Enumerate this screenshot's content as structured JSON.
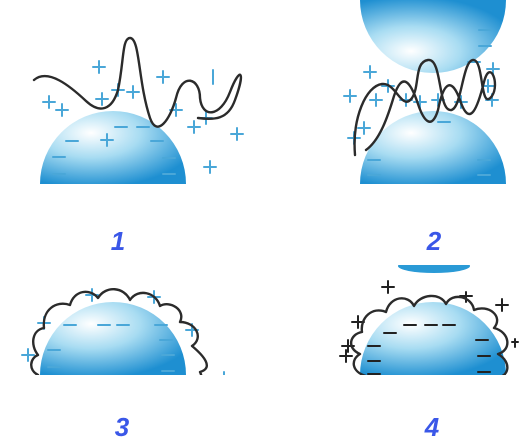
{
  "colors": {
    "label": "#3a57e8",
    "sphere_light": "#ffffff",
    "sphere_mid": "#9ad4ef",
    "sphere_dark": "#1e8fd1",
    "sign": "#4aa7d8",
    "sign_dark": "#222222",
    "polymer": "#2b2b2b"
  },
  "panels": [
    {
      "label": "1"
    },
    {
      "label": "2"
    },
    {
      "label": "3"
    },
    {
      "label": "4"
    }
  ]
}
